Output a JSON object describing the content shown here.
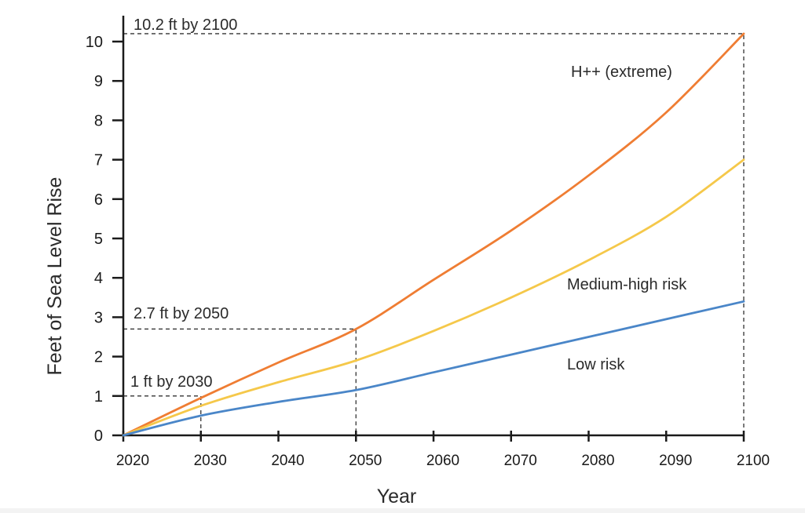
{
  "chart_data": {
    "type": "line",
    "title": "",
    "xlabel": "Year",
    "ylabel": "Feet of Sea Level Rise",
    "xlim": [
      2020,
      2100
    ],
    "ylim": [
      0,
      10
    ],
    "x_ticks": [
      2020,
      2030,
      2040,
      2050,
      2060,
      2070,
      2080,
      2090,
      2100
    ],
    "y_ticks": [
      0,
      1,
      2,
      3,
      4,
      5,
      6,
      7,
      8,
      9,
      10
    ],
    "grid": false,
    "series": [
      {
        "name": "H++ (extreme)",
        "color": "#ef7d33",
        "x": [
          2020,
          2030,
          2040,
          2050,
          2060,
          2070,
          2080,
          2090,
          2100
        ],
        "y": [
          0,
          0.95,
          1.85,
          2.7,
          3.95,
          5.2,
          6.6,
          8.2,
          10.2
        ]
      },
      {
        "name": "Medium-high risk",
        "color": "#f5c84a",
        "x": [
          2020,
          2030,
          2040,
          2050,
          2060,
          2070,
          2080,
          2090,
          2100
        ],
        "y": [
          0,
          0.75,
          1.35,
          1.9,
          2.65,
          3.5,
          4.45,
          5.55,
          7.0
        ]
      },
      {
        "name": "Low risk",
        "color": "#4a86c8",
        "x": [
          2020,
          2030,
          2040,
          2050,
          2060,
          2070,
          2080,
          2090,
          2100
        ],
        "y": [
          0,
          0.5,
          0.85,
          1.15,
          1.6,
          2.05,
          2.5,
          2.95,
          3.4
        ]
      }
    ],
    "annotations": [
      {
        "text": "10.2 ft by 2100",
        "x": 2100,
        "y": 10.2
      },
      {
        "text": "2.7 ft by 2050",
        "x": 2050,
        "y": 2.7
      },
      {
        "text": "1 ft by 2030",
        "x": 2030,
        "y": 1
      }
    ]
  }
}
